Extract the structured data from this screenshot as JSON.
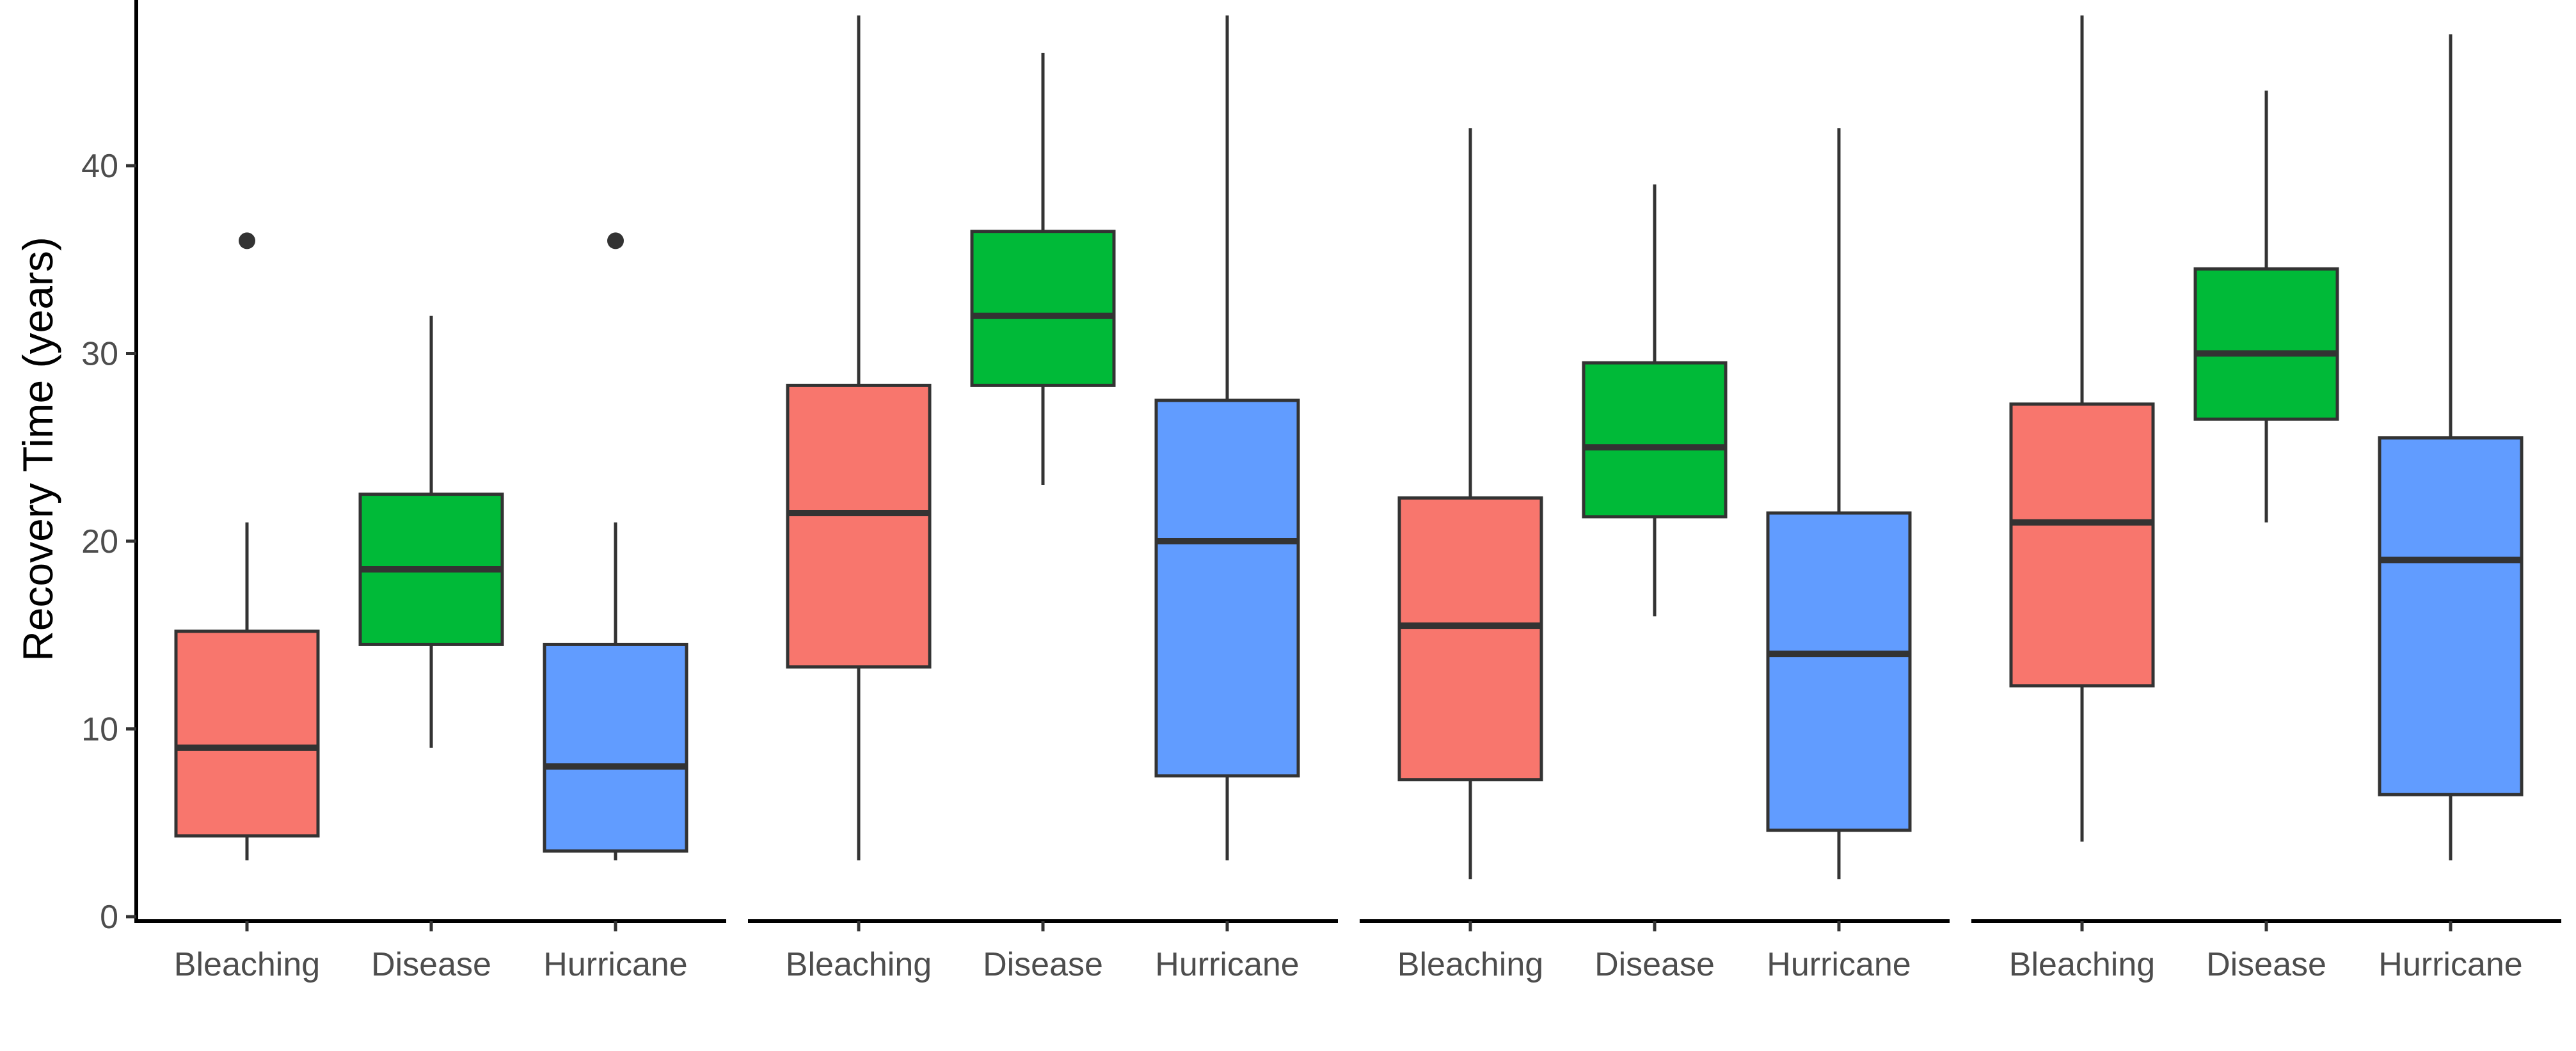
{
  "chart_data": {
    "type": "boxplot",
    "title": "",
    "ylabel": "Recovery Time (years)",
    "ylim": [
      0,
      48
    ],
    "yticks": [
      0,
      10,
      20,
      30,
      40
    ],
    "legend": "none",
    "colors": {
      "Bleaching": "#F8766D",
      "Disease": "#00BA38",
      "Hurricane": "#619CFF"
    },
    "panels": [
      {
        "categories": [
          "Bleaching",
          "Disease",
          "Hurricane"
        ],
        "boxes": [
          {
            "category": "Bleaching",
            "min": 3,
            "q1": 4.3,
            "median": 9,
            "q3": 15.2,
            "max": 21,
            "outliers": [
              36
            ]
          },
          {
            "category": "Disease",
            "min": 9,
            "q1": 14.5,
            "median": 18.5,
            "q3": 22.5,
            "max": 32,
            "outliers": []
          },
          {
            "category": "Hurricane",
            "min": 3,
            "q1": 3.5,
            "median": 8,
            "q3": 14.5,
            "max": 21,
            "outliers": [
              36
            ]
          }
        ]
      },
      {
        "categories": [
          "Bleaching",
          "Disease",
          "Hurricane"
        ],
        "boxes": [
          {
            "category": "Bleaching",
            "min": 3,
            "q1": 13.3,
            "median": 21.5,
            "q3": 28.3,
            "max": 48,
            "outliers": []
          },
          {
            "category": "Disease",
            "min": 23,
            "q1": 28.3,
            "median": 32,
            "q3": 36.5,
            "max": 46,
            "outliers": []
          },
          {
            "category": "Hurricane",
            "min": 3,
            "q1": 7.5,
            "median": 20,
            "q3": 27.5,
            "max": 48,
            "outliers": []
          }
        ]
      },
      {
        "categories": [
          "Bleaching",
          "Disease",
          "Hurricane"
        ],
        "boxes": [
          {
            "category": "Bleaching",
            "min": 2,
            "q1": 7.3,
            "median": 15.5,
            "q3": 22.3,
            "max": 42,
            "outliers": []
          },
          {
            "category": "Disease",
            "min": 16,
            "q1": 21.3,
            "median": 25,
            "q3": 29.5,
            "max": 39,
            "outliers": []
          },
          {
            "category": "Hurricane",
            "min": 2,
            "q1": 4.6,
            "median": 14,
            "q3": 21.5,
            "max": 42,
            "outliers": []
          }
        ]
      },
      {
        "categories": [
          "Bleaching",
          "Disease",
          "Hurricane"
        ],
        "boxes": [
          {
            "category": "Bleaching",
            "min": 4,
            "q1": 12.3,
            "median": 21,
            "q3": 27.3,
            "max": 48,
            "outliers": []
          },
          {
            "category": "Disease",
            "min": 21,
            "q1": 26.5,
            "median": 30,
            "q3": 34.5,
            "max": 44,
            "outliers": []
          },
          {
            "category": "Hurricane",
            "min": 3,
            "q1": 6.5,
            "median": 19,
            "q3": 25.5,
            "max": 47,
            "outliers": []
          }
        ]
      }
    ]
  }
}
